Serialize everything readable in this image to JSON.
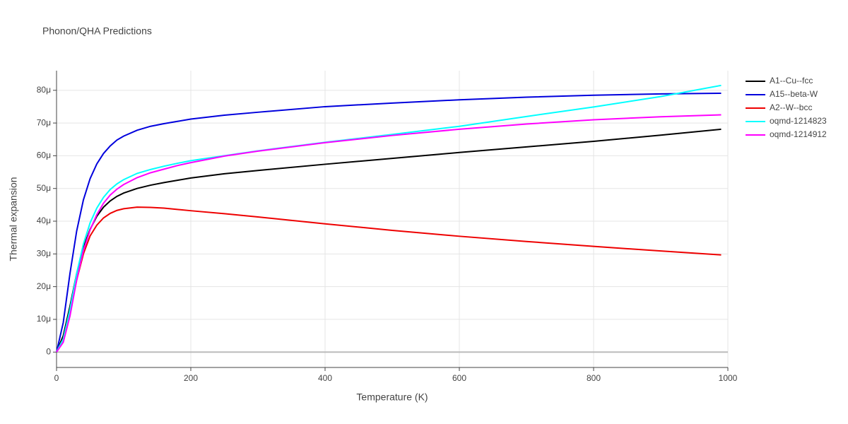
{
  "chart_data": {
    "type": "line",
    "title": "Phonon/QHA Predictions",
    "x_label": "Temperature (K)",
    "y_label": "Thermal expansion",
    "x": [
      0,
      10,
      20,
      30,
      40,
      50,
      60,
      70,
      80,
      90,
      100,
      120,
      140,
      160,
      180,
      200,
      250,
      300,
      400,
      500,
      600,
      700,
      800,
      900,
      990
    ],
    "series": [
      {
        "name": "A1--Cu--fcc",
        "color": "#000000",
        "values": [
          0,
          5,
          14,
          24,
          32,
          37.5,
          41.5,
          44.3,
          46.2,
          47.6,
          48.6,
          50,
          51,
          51.8,
          52.5,
          53.2,
          54.5,
          55.5,
          57.4,
          59.2,
          61,
          62.7,
          64.4,
          66.3,
          68.1
        ]
      },
      {
        "name": "A15--beta-W",
        "color": "#0000dd",
        "values": [
          0,
          9,
          24,
          37,
          46.5,
          53,
          57.5,
          60.7,
          63,
          64.8,
          66,
          67.8,
          69,
          69.8,
          70.5,
          71.2,
          72.4,
          73.3,
          75,
          76.1,
          77.1,
          77.9,
          78.5,
          78.9,
          79.1
        ]
      },
      {
        "name": "A2--W--bcc",
        "color": "#ee0000",
        "values": [
          0,
          4,
          12,
          22,
          30,
          35.5,
          38.8,
          41,
          42.4,
          43.3,
          43.8,
          44.3,
          44.2,
          44,
          43.6,
          43.2,
          42.3,
          41.3,
          39.2,
          37.2,
          35.4,
          33.8,
          32.3,
          30.9,
          29.7
        ]
      },
      {
        "name": "oqmd-1214823",
        "color": "#00ffff",
        "values": [
          0,
          4,
          13,
          24,
          33,
          39.5,
          44,
          47.3,
          49.7,
          51.4,
          52.7,
          54.6,
          55.8,
          56.8,
          57.7,
          58.5,
          60,
          61.5,
          64.1,
          66.5,
          69,
          72,
          74.9,
          78.1,
          81.5
        ]
      },
      {
        "name": "oqmd-1214912",
        "color": "#ff00ff",
        "values": [
          0,
          3,
          11,
          22,
          31,
          37.3,
          42,
          45.5,
          48,
          49.8,
          51.2,
          53.3,
          54.8,
          55.9,
          57,
          57.9,
          59.9,
          61.4,
          64,
          66.2,
          68.1,
          69.7,
          71,
          71.9,
          72.5
        ]
      }
    ],
    "xlim": [
      0,
      1000
    ],
    "xticks": [
      0,
      200,
      400,
      600,
      800,
      1000
    ],
    "ylim": [
      -4.7,
      86
    ],
    "yticks": [
      0,
      {
        "value": 10,
        "label": "10μ"
      },
      {
        "value": 20,
        "label": "20μ"
      },
      {
        "value": 30,
        "label": "30μ"
      },
      {
        "value": 40,
        "label": "40μ"
      },
      {
        "value": 50,
        "label": "50μ"
      },
      {
        "value": 60,
        "label": "60μ"
      },
      {
        "value": 70,
        "label": "70μ"
      },
      {
        "value": 80,
        "label": "80μ"
      }
    ],
    "grid": true,
    "legend": "right"
  }
}
